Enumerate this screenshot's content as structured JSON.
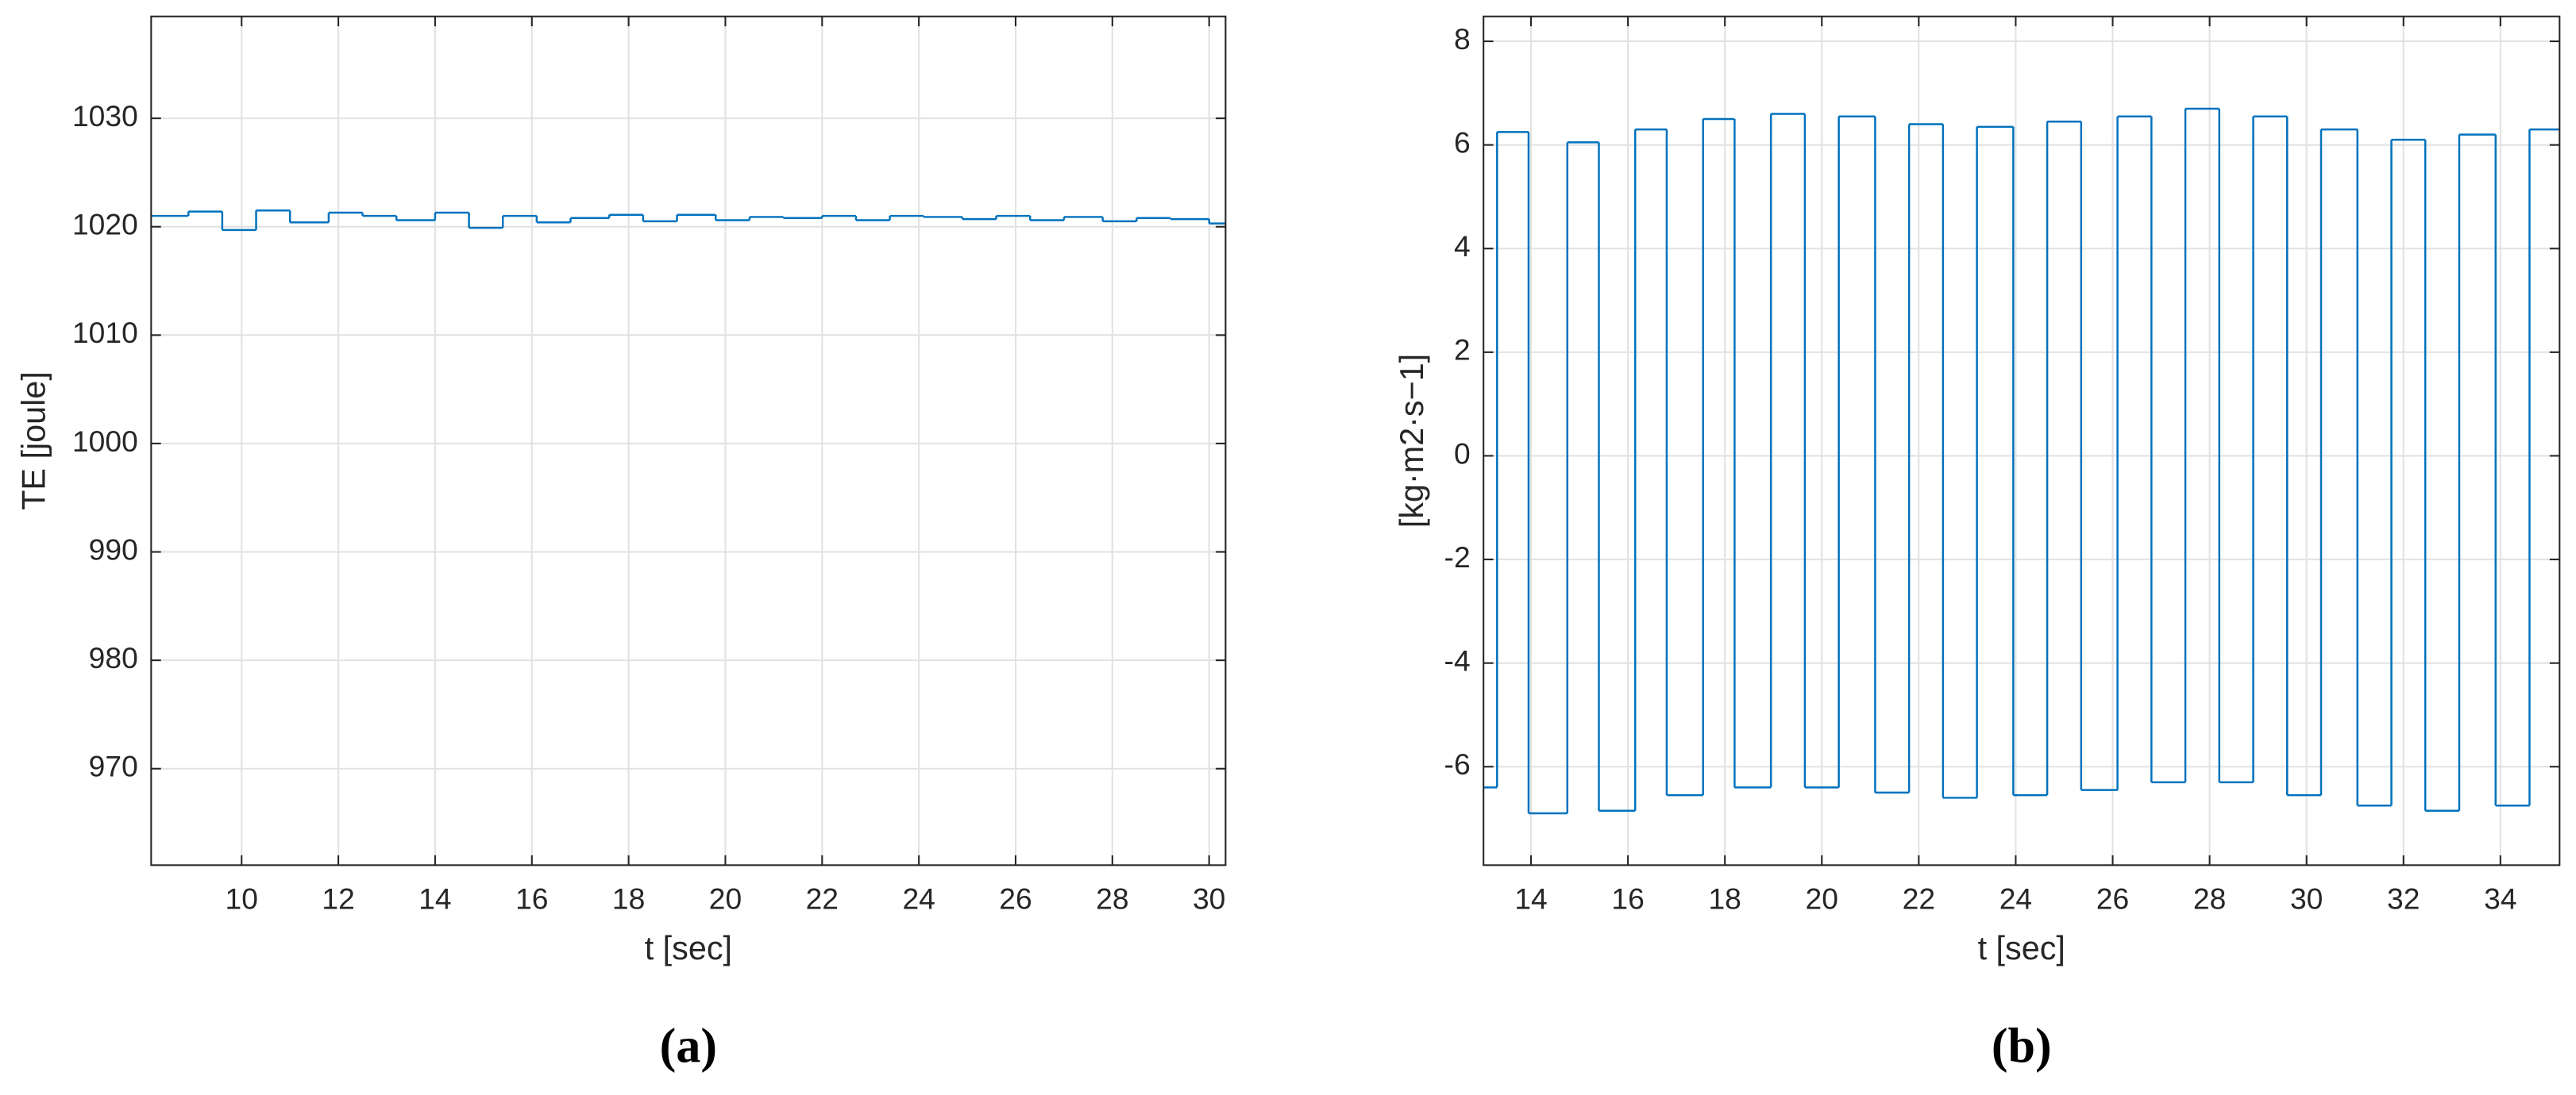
{
  "chart_data": [
    {
      "type": "line",
      "drawstyle": "steps-post",
      "caption": "(a)",
      "xlabel": "t [sec]",
      "ylabel": "TE [joule]",
      "xlim": [
        8.13,
        30.34
      ],
      "ylim": [
        961.1,
        1039.4
      ],
      "xticks": [
        10,
        12,
        14,
        16,
        18,
        20,
        22,
        24,
        26,
        28,
        30
      ],
      "yticks": [
        970,
        980,
        990,
        1000,
        1010,
        1020,
        1030
      ],
      "grid": true,
      "series": [
        {
          "color": "#0072bd",
          "x": [
            8.13,
            8.9,
            9.6,
            10.3,
            11.0,
            11.8,
            12.5,
            13.2,
            14.0,
            14.7,
            15.4,
            16.1,
            16.8,
            17.6,
            18.3,
            19.0,
            19.8,
            20.5,
            21.2,
            22.0,
            22.7,
            23.4,
            24.1,
            24.9,
            25.6,
            26.3,
            27.0,
            27.8,
            28.5,
            29.2,
            30.0
          ],
          "values": [
            1021,
            1021.4,
            1019.7,
            1021.5,
            1020.4,
            1021.3,
            1021,
            1020.6,
            1021.3,
            1019.9,
            1021,
            1020.4,
            1020.8,
            1021.1,
            1020.5,
            1021.1,
            1020.6,
            1020.9,
            1020.8,
            1021,
            1020.6,
            1021,
            1020.9,
            1020.7,
            1021,
            1020.6,
            1020.9,
            1020.5,
            1020.8,
            1020.7,
            1020.3
          ]
        }
      ]
    },
    {
      "type": "line",
      "drawstyle": "steps-post",
      "caption": "(b)",
      "xlabel": "t [sec]",
      "ylabel": "[kg·m2·s−1]",
      "xlim": [
        13.02,
        35.22
      ],
      "ylim": [
        -7.9,
        8.48
      ],
      "xticks": [
        14,
        16,
        18,
        20,
        22,
        24,
        26,
        28,
        30,
        32,
        34
      ],
      "yticks": [
        -6,
        -4,
        -2,
        0,
        2,
        4,
        6,
        8
      ],
      "grid": true,
      "series": [
        {
          "color": "#0072bd",
          "x": [
            13.02,
            13.3,
            13.95,
            14.75,
            15.4,
            16.15,
            16.8,
            17.55,
            18.2,
            18.95,
            19.65,
            20.35,
            21.1,
            21.8,
            22.5,
            23.2,
            23.95,
            24.65,
            25.35,
            26.1,
            26.8,
            27.5,
            28.2,
            28.9,
            29.6,
            30.3,
            31.05,
            31.75,
            32.45,
            33.15,
            33.9,
            34.6
          ],
          "values": [
            -6.4,
            6.25,
            -6.9,
            6.05,
            -6.85,
            6.3,
            -6.55,
            6.5,
            -6.4,
            6.6,
            -6.4,
            6.55,
            -6.5,
            6.4,
            -6.6,
            6.35,
            -6.55,
            6.45,
            -6.45,
            6.55,
            -6.3,
            6.7,
            -6.3,
            6.55,
            -6.55,
            6.3,
            -6.75,
            6.1,
            -6.85,
            6.2,
            -6.75,
            6.3
          ]
        }
      ]
    }
  ]
}
